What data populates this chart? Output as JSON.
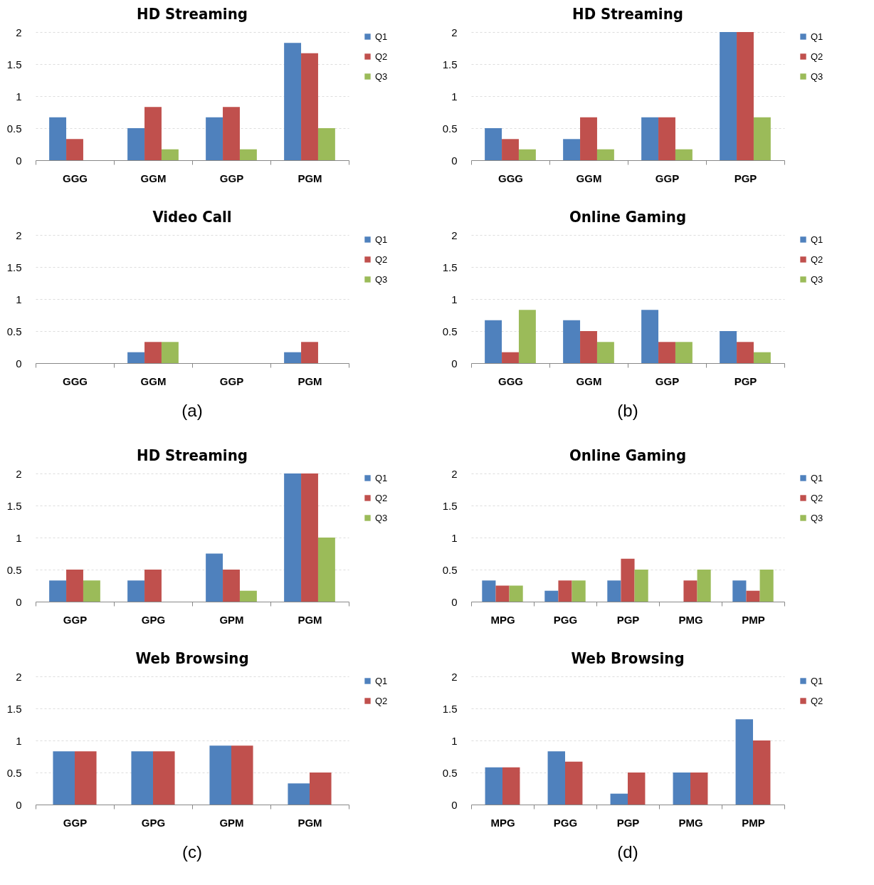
{
  "chart_data": [
    {
      "type": "bar",
      "title": "HD Streaming",
      "categories": [
        "GGG",
        "GGM",
        "GGP",
        "PGM"
      ],
      "ylim": [
        0,
        2
      ],
      "yticks": [
        0,
        0.5,
        1,
        1.5,
        2
      ],
      "grid": "y",
      "legend": "right",
      "series": [
        {
          "name": "Q1",
          "color": "#4f81bd",
          "values": [
            0.67,
            0.5,
            0.67,
            1.83
          ]
        },
        {
          "name": "Q2",
          "color": "#c0504d",
          "values": [
            0.33,
            0.83,
            0.83,
            1.67
          ]
        },
        {
          "name": "Q3",
          "color": "#9bbb59",
          "values": [
            0,
            0.17,
            0.17,
            0.5
          ]
        }
      ]
    },
    {
      "type": "bar",
      "title": "HD Streaming",
      "categories": [
        "GGG",
        "GGM",
        "GGP",
        "PGP"
      ],
      "ylim": [
        0,
        2
      ],
      "yticks": [
        0,
        0.5,
        1,
        1.5,
        2
      ],
      "grid": "y",
      "legend": "right",
      "series": [
        {
          "name": "Q1",
          "color": "#4f81bd",
          "values": [
            0.5,
            0.33,
            0.67,
            2
          ]
        },
        {
          "name": "Q2",
          "color": "#c0504d",
          "values": [
            0.33,
            0.67,
            0.67,
            2
          ]
        },
        {
          "name": "Q3",
          "color": "#9bbb59",
          "values": [
            0.17,
            0.17,
            0.17,
            0.67
          ]
        }
      ]
    },
    {
      "type": "bar",
      "title": "Video Call",
      "categories": [
        "GGG",
        "GGM",
        "GGP",
        "PGM"
      ],
      "ylim": [
        0,
        2
      ],
      "yticks": [
        0,
        0.5,
        1,
        1.5,
        2
      ],
      "grid": "y",
      "legend": "right",
      "annotations": [
        "(a)"
      ],
      "series": [
        {
          "name": "Q1",
          "color": "#4f81bd",
          "values": [
            0,
            0.17,
            0,
            0.17
          ]
        },
        {
          "name": "Q2",
          "color": "#c0504d",
          "values": [
            0,
            0.33,
            0,
            0.33
          ]
        },
        {
          "name": "Q3",
          "color": "#9bbb59",
          "values": [
            0,
            0.33,
            0,
            0
          ]
        }
      ]
    },
    {
      "type": "bar",
      "title": "Online Gaming",
      "categories": [
        "GGG",
        "GGM",
        "GGP",
        "PGP"
      ],
      "ylim": [
        0,
        2
      ],
      "yticks": [
        0,
        0.5,
        1,
        1.5,
        2
      ],
      "grid": "y",
      "legend": "right",
      "annotations": [
        "(b)"
      ],
      "series": [
        {
          "name": "Q1",
          "color": "#4f81bd",
          "values": [
            0.67,
            0.67,
            0.83,
            0.5
          ]
        },
        {
          "name": "Q2",
          "color": "#c0504d",
          "values": [
            0.17,
            0.5,
            0.33,
            0.33
          ]
        },
        {
          "name": "Q3",
          "color": "#9bbb59",
          "values": [
            0.83,
            0.33,
            0.33,
            0.17
          ]
        }
      ]
    },
    {
      "type": "bar",
      "title": "HD Streaming",
      "categories": [
        "GGP",
        "GPG",
        "GPM",
        "PGM"
      ],
      "ylim": [
        0,
        2
      ],
      "yticks": [
        0,
        0.5,
        1,
        1.5,
        2
      ],
      "grid": "y",
      "legend": "right",
      "series": [
        {
          "name": "Q1",
          "color": "#4f81bd",
          "values": [
            0.33,
            0.33,
            0.75,
            2
          ]
        },
        {
          "name": "Q2",
          "color": "#c0504d",
          "values": [
            0.5,
            0.5,
            0.5,
            2
          ]
        },
        {
          "name": "Q3",
          "color": "#9bbb59",
          "values": [
            0.33,
            0,
            0.17,
            1
          ]
        }
      ]
    },
    {
      "type": "bar",
      "title": "Online Gaming",
      "categories": [
        "MPG",
        "PGG",
        "PGP",
        "PMG",
        "PMP"
      ],
      "ylim": [
        0,
        2
      ],
      "yticks": [
        0,
        0.5,
        1,
        1.5,
        2
      ],
      "grid": "y",
      "legend": "right",
      "series": [
        {
          "name": "Q1",
          "color": "#4f81bd",
          "values": [
            0.33,
            0.17,
            0.33,
            0,
            0.33
          ]
        },
        {
          "name": "Q2",
          "color": "#c0504d",
          "values": [
            0.25,
            0.33,
            0.67,
            0.33,
            0.17
          ]
        },
        {
          "name": "Q3",
          "color": "#9bbb59",
          "values": [
            0.25,
            0.33,
            0.5,
            0.5,
            0.5
          ]
        }
      ]
    },
    {
      "type": "bar",
      "title": "Web Browsing",
      "categories": [
        "GGP",
        "GPG",
        "GPM",
        "PGM"
      ],
      "ylim": [
        0,
        2
      ],
      "yticks": [
        0,
        0.5,
        1,
        1.5,
        2
      ],
      "grid": "y",
      "legend": "right",
      "annotations": [
        "(c)"
      ],
      "series": [
        {
          "name": "Q1",
          "color": "#4f81bd",
          "values": [
            0.83,
            0.83,
            0.92,
            0.33
          ]
        },
        {
          "name": "Q2",
          "color": "#c0504d",
          "values": [
            0.83,
            0.83,
            0.92,
            0.5
          ]
        }
      ]
    },
    {
      "type": "bar",
      "title": "Web Browsing",
      "categories": [
        "MPG",
        "PGG",
        "PGP",
        "PMG",
        "PMP"
      ],
      "ylim": [
        0,
        2
      ],
      "yticks": [
        0,
        0.5,
        1,
        1.5,
        2
      ],
      "grid": "y",
      "legend": "right",
      "annotations": [
        "(d)"
      ],
      "series": [
        {
          "name": "Q1",
          "color": "#4f81bd",
          "values": [
            0.58,
            0.83,
            0.17,
            0.5,
            1.33
          ]
        },
        {
          "name": "Q2",
          "color": "#c0504d",
          "values": [
            0.58,
            0.67,
            0.5,
            0.5,
            1
          ]
        }
      ]
    }
  ]
}
